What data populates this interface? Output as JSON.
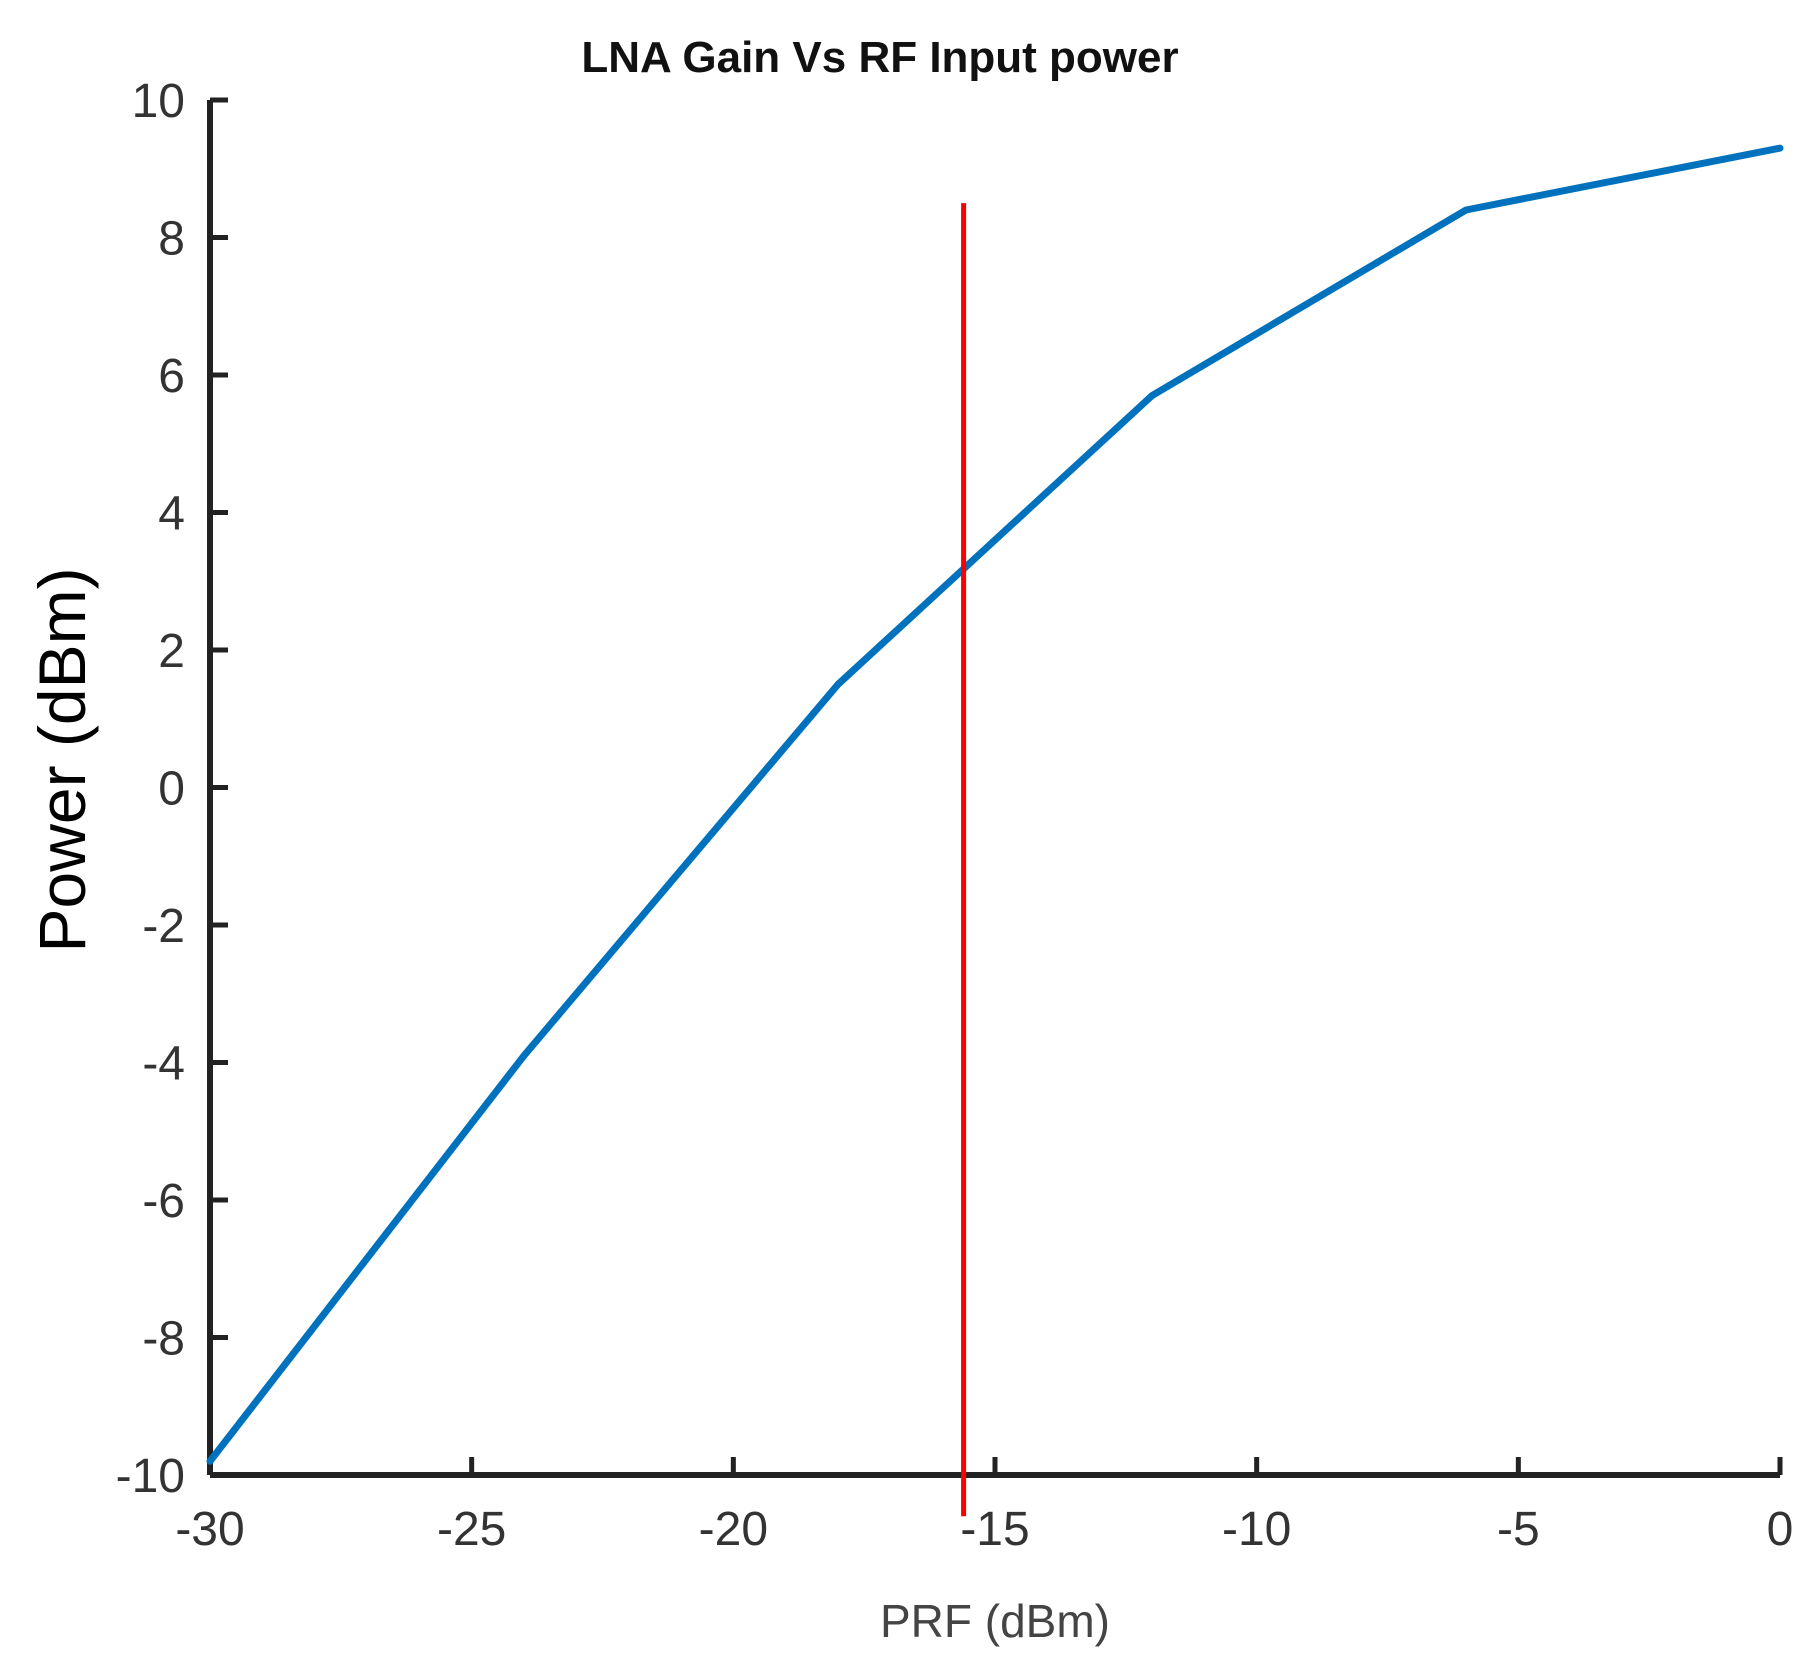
{
  "chart_data": {
    "type": "line",
    "title": "LNA Gain Vs RF Input power",
    "xlabel": "PRF (dBm)",
    "ylabel": "Power (dBm)",
    "xlim": [
      -30,
      0
    ],
    "ylim": [
      -10,
      10
    ],
    "xticks": [
      -30,
      -25,
      -20,
      -15,
      -10,
      -5,
      0
    ],
    "xtick_labels": [
      "-30",
      "-25",
      "-20",
      "-15",
      "-10",
      "-5",
      "0"
    ],
    "yticks": [
      -10,
      -8,
      -6,
      -4,
      -2,
      0,
      2,
      4,
      6,
      8,
      10
    ],
    "ytick_labels": [
      "-10",
      "-8",
      "-6",
      "-4",
      "-2",
      "0",
      "2",
      "4",
      "6",
      "8",
      "10"
    ],
    "grid": false,
    "series": [
      {
        "name": "LNA Gain",
        "color": "#0072BD",
        "x": [
          -30,
          -24,
          -18,
          -12,
          -6,
          0
        ],
        "y": [
          -9.8,
          -3.9,
          1.5,
          5.7,
          8.4,
          9.3
        ]
      }
    ],
    "annotations": [
      {
        "type": "vline",
        "x": -15.6,
        "y_range": [
          -10.6,
          8.5
        ],
        "color": "#FF0000"
      }
    ]
  }
}
